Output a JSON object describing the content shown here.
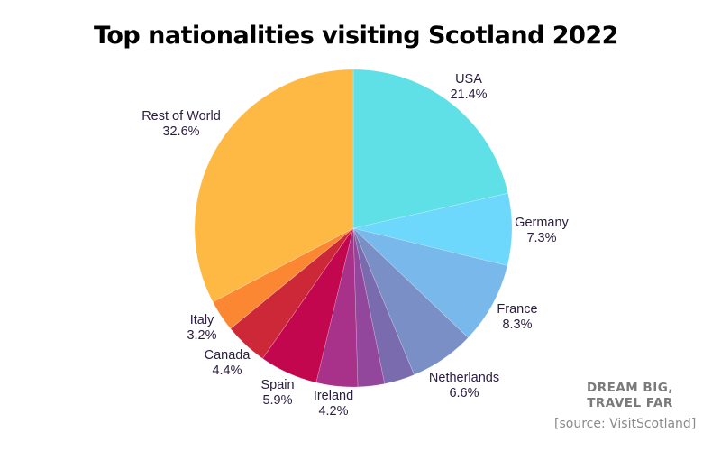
{
  "chart_data": {
    "type": "pie",
    "title": "Top nationalities visiting Scotland 2022",
    "start_angle": "top, clockwise",
    "slices": [
      {
        "label": "USA",
        "value": 21.4,
        "value_label": "21.4%",
        "color": "#5EE0E6"
      },
      {
        "label": "Germany",
        "value": 7.3,
        "value_label": "7.3%",
        "color": "#6DD8FB"
      },
      {
        "label": "France",
        "value": 8.3,
        "value_label": "8.3%",
        "color": "#79B8EA"
      },
      {
        "label": "Netherlands",
        "value": 6.6,
        "value_label": "6.6%",
        "color": "#7A8FC6"
      },
      {
        "label": "",
        "value": 3.1,
        "value_label": "",
        "color": "#7A6AAE"
      },
      {
        "label": "",
        "value": 2.7,
        "value_label": "",
        "color": "#93479C"
      },
      {
        "label": "Ireland",
        "value": 4.2,
        "value_label": "4.2%",
        "color": "#A83189"
      },
      {
        "label": "Spain",
        "value": 5.9,
        "value_label": "5.9%",
        "color": "#C2074F"
      },
      {
        "label": "Canada",
        "value": 4.4,
        "value_label": "4.4%",
        "color": "#CC2838"
      },
      {
        "label": "Italy",
        "value": 3.2,
        "value_label": "3.2%",
        "color": "#FB8732"
      },
      {
        "label": "Rest of World",
        "value": 32.6,
        "value_label": "32.6%",
        "color": "#FDB944"
      }
    ],
    "legend": "none (direct labels)"
  },
  "labels": {
    "usa": {
      "name": "USA",
      "pct": "21.4%"
    },
    "germany": {
      "name": "Germany",
      "pct": "7.3%"
    },
    "france": {
      "name": "France",
      "pct": "8.3%"
    },
    "netherlands": {
      "name": "Netherlands",
      "pct": "6.6%"
    },
    "ireland": {
      "name": "Ireland",
      "pct": "4.2%"
    },
    "spain": {
      "name": "Spain",
      "pct": "5.9%"
    },
    "canada": {
      "name": "Canada",
      "pct": "4.4%"
    },
    "italy": {
      "name": "Italy",
      "pct": "3.2%"
    },
    "rest": {
      "name": "Rest of World",
      "pct": "32.6%"
    }
  },
  "branding": {
    "line1": "DREAM BIG,",
    "line2": "TRAVEL FAR"
  },
  "source": "[source: VisitScotland]"
}
